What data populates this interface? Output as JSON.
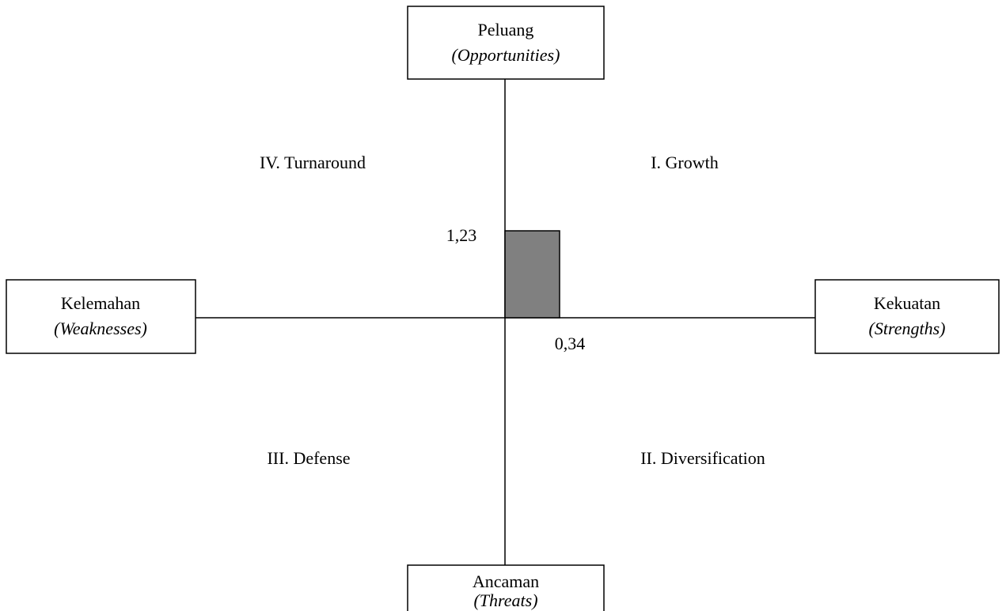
{
  "boxes": {
    "top": {
      "label": "Peluang",
      "sub": "(Opportunities)"
    },
    "left": {
      "label": "Kelemahan",
      "sub": "(Weaknesses)"
    },
    "right": {
      "label": "Kekuatan",
      "sub": "(Strengths)"
    },
    "bottom": {
      "label": "Ancaman",
      "sub": "(Threats)"
    }
  },
  "quadrants": {
    "q1": "I. Growth",
    "q2": "II. Diversification",
    "q3": "III. Defense",
    "q4": "IV. Turnaround"
  },
  "values": {
    "y": "1,23",
    "x": "0,34"
  }
}
